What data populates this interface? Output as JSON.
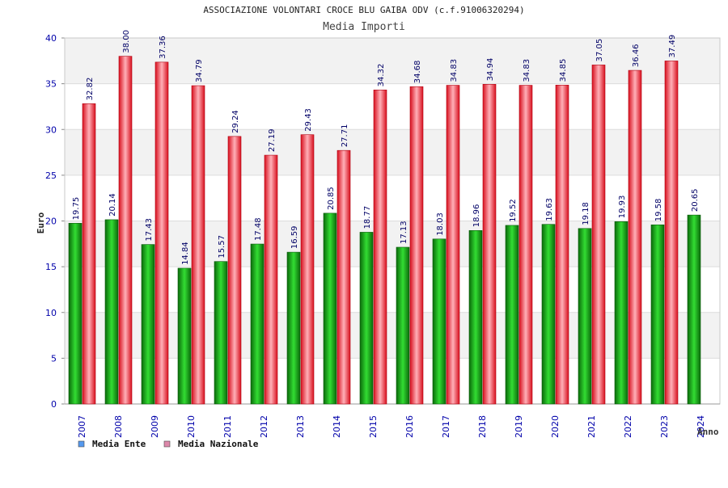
{
  "chart_data": {
    "type": "bar",
    "title": "ASSOCIAZIONE VOLONTARI CROCE BLU GAIBA ODV (c.f.91006320294)",
    "subtitle": "Media Importi",
    "xlabel": "Anno",
    "ylabel": "Euro",
    "ylim": [
      0,
      40
    ],
    "yticks": [
      0,
      5,
      10,
      15,
      20,
      25,
      30,
      35,
      40
    ],
    "grid": "horizontal bands",
    "legend_position": "bottom-left",
    "categories": [
      "2007",
      "2008",
      "2009",
      "2010",
      "2011",
      "2012",
      "2013",
      "2014",
      "2015",
      "2016",
      "2017",
      "2018",
      "2019",
      "2020",
      "2021",
      "2022",
      "2023",
      "2024"
    ],
    "series": [
      {
        "name": "Media Ente",
        "color": "#11aa11",
        "legend_color": "#5599ee",
        "values": [
          19.75,
          20.14,
          17.43,
          14.84,
          15.57,
          17.48,
          16.59,
          20.85,
          18.77,
          17.13,
          18.03,
          18.96,
          19.52,
          19.63,
          19.18,
          19.93,
          19.58,
          20.65
        ],
        "labels": [
          "19.75",
          "20.14",
          "17.43",
          "14.84",
          "15.57",
          "17.48",
          "16.59",
          "20.85",
          "18.77",
          "17.13",
          "18.03",
          "18.96",
          "19.52",
          "19.63",
          "19.18",
          "19.93",
          "19.58",
          "20.65"
        ]
      },
      {
        "name": "Media Nazionale",
        "color": "#ee1122",
        "legend_color": "#dd88aa",
        "values": [
          32.82,
          38.0,
          37.36,
          34.79,
          29.24,
          27.19,
          29.43,
          27.71,
          34.32,
          34.68,
          34.83,
          34.94,
          34.83,
          34.85,
          37.05,
          36.46,
          37.49,
          null
        ],
        "labels": [
          "32.82",
          "38.00",
          "37.36",
          "34.79",
          "29.24",
          "27.19",
          "29.43",
          "27.71",
          "34.32",
          "34.68",
          "34.83",
          "34.94",
          "34.83",
          "34.85",
          "37.05",
          "36.46",
          "37.49",
          ""
        ]
      }
    ]
  }
}
